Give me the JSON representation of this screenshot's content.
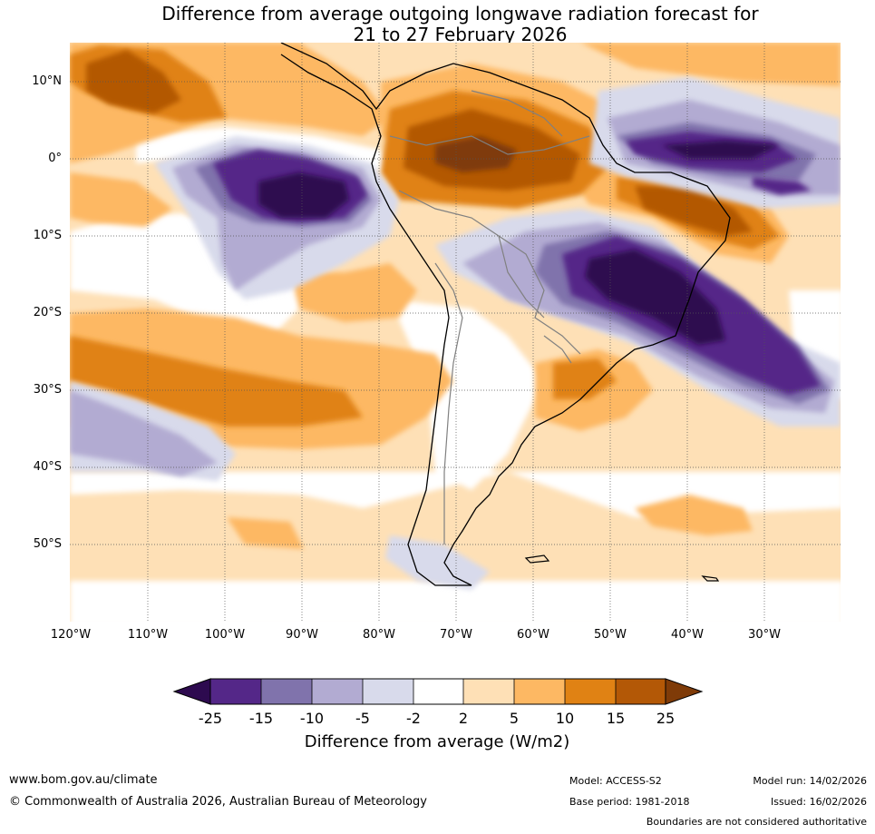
{
  "title": {
    "line1": "Difference from average outgoing longwave radiation forecast for",
    "line2": "21 to 27 February 2026"
  },
  "map": {
    "lat_labels": [
      "10°N",
      "0°",
      "10°S",
      "20°S",
      "30°S",
      "40°S",
      "50°S"
    ],
    "lon_labels": [
      "120°W",
      "110°W",
      "100°W",
      "90°W",
      "80°W",
      "70°W",
      "60°W",
      "50°W",
      "40°W",
      "30°W"
    ],
    "colors": {
      "very_strong_neg": "#2d0a4f",
      "strong_neg": "#542788",
      "mid_neg": "#8073ac",
      "weak_neg": "#b2abd2",
      "faint_neg": "#d8daeb",
      "neutral": "#ffffff",
      "faint_pos": "#fee0b6",
      "weak_pos": "#fdb863",
      "mid_pos": "#e08214",
      "strong_pos": "#b35806",
      "very_strong_pos": "#7f3b08",
      "coast": "#000000",
      "border": "#808080"
    }
  },
  "colorbar": {
    "title": "Difference from average (W/m2)",
    "ticks": [
      "-25",
      "-15",
      "-10",
      "-5",
      "-2",
      "2",
      "5",
      "10",
      "15",
      "25"
    ],
    "colors": [
      "#2d0a4f",
      "#542788",
      "#8073ac",
      "#b2abd2",
      "#d8daeb",
      "#ffffff",
      "#fee0b6",
      "#fdb863",
      "#e08214",
      "#b35806",
      "#7f3b08"
    ]
  },
  "footer": {
    "website": "www.bom.gov.au/climate",
    "copyright": "© Commonwealth of Australia 2026, Australian Bureau of Meteorology",
    "model": "Model: ACCESS-S2",
    "base_period": "Base period: 1981-2018",
    "model_run": "Model run: 14/02/2026",
    "issued": "Issued: 16/02/2026",
    "disclaimer": "Boundaries are not considered authoritative"
  }
}
